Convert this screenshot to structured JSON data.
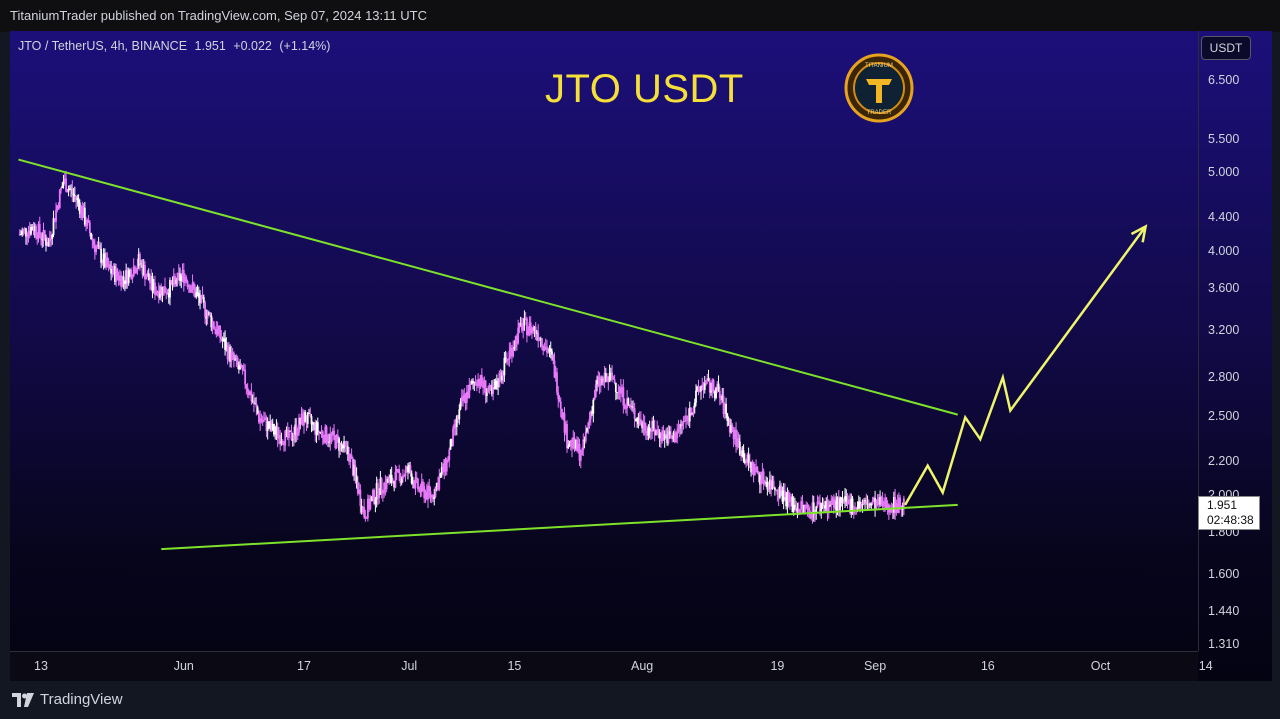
{
  "header": {
    "publisher_line": "TitaniumTrader published on TradingView.com, Sep 07, 2024 13:11 UTC"
  },
  "symbol": {
    "name": "JTO / TetherUS, 4h, BINANCE",
    "last": "1.951",
    "change": "+0.022",
    "change_pct": "(+1.14%)"
  },
  "title_overlay": "JTO USDT",
  "logo": {
    "top_text": "TITANIUM",
    "bottom_text": "TRADER",
    "icon": "titanium-trader-logo"
  },
  "price_axis": {
    "currency": "USDT",
    "current_price": "1.951",
    "countdown": "02:48:38"
  },
  "footer": {
    "brand": "TradingView",
    "icon": "tradingview-logo-icon"
  },
  "colors": {
    "candles": "#e879f9",
    "candles_alt": "#ffffff",
    "trendline": "#7ee22a",
    "projection": "#eef56a",
    "title": "#f5e03a"
  },
  "chart_data": {
    "type": "candlestick",
    "scale": "log",
    "ylim": [
      1.26,
      7.5
    ],
    "y_ticks": [
      "6.500",
      "5.500",
      "5.000",
      "4.400",
      "4.000",
      "3.600",
      "3.200",
      "2.800",
      "2.500",
      "2.200",
      "2.000",
      "1.800",
      "1.600",
      "1.440",
      "1.310"
    ],
    "y_tick_values": [
      6.5,
      5.5,
      5.0,
      4.4,
      4.0,
      3.6,
      3.2,
      2.8,
      2.5,
      2.2,
      2.0,
      1.8,
      1.6,
      1.44,
      1.31
    ],
    "x_ticks": [
      "13",
      "Jun",
      "17",
      "Jul",
      "15",
      "Aug",
      "19",
      "Sep",
      "16",
      "Oct",
      "14"
    ],
    "x_tick_days": [
      -19,
      0,
      16,
      30,
      44,
      61,
      79,
      92,
      107,
      122,
      136
    ],
    "xlim_days": [
      -22,
      136
    ],
    "close_series": {
      "days": [
        -22,
        -20,
        -18,
        -16,
        -14,
        -12,
        -10,
        -8,
        -6,
        -4,
        -2,
        0,
        2,
        4,
        6,
        8,
        10,
        12,
        14,
        16,
        18,
        20,
        22,
        24,
        26,
        28,
        30,
        31,
        33,
        35,
        37,
        39,
        41,
        43,
        45,
        47,
        49,
        51,
        53,
        55,
        57,
        59,
        61,
        63,
        65,
        67,
        69,
        71,
        73,
        75,
        77,
        79,
        81,
        83,
        85,
        87,
        89,
        91,
        93,
        95,
        96
      ],
      "values": [
        4.2,
        4.3,
        4.1,
        4.9,
        4.6,
        4.1,
        3.8,
        3.7,
        3.9,
        3.6,
        3.6,
        3.75,
        3.5,
        3.25,
        3.0,
        2.8,
        2.5,
        2.4,
        2.35,
        2.5,
        2.4,
        2.35,
        2.25,
        1.9,
        2.05,
        2.1,
        2.15,
        2.05,
        2.0,
        2.2,
        2.6,
        2.8,
        2.65,
        2.95,
        3.25,
        3.2,
        2.95,
        2.35,
        2.25,
        2.75,
        2.8,
        2.6,
        2.45,
        2.4,
        2.35,
        2.5,
        2.75,
        2.7,
        2.4,
        2.2,
        2.1,
        2.05,
        1.95,
        1.92,
        1.951,
        1.951,
        1.951,
        1.951,
        1.951,
        1.951,
        1.951
      ]
    },
    "trendlines": [
      {
        "name": "",
        "points": [
          [
            -22,
            5.2
          ],
          [
            103,
            2.52
          ]
        ]
      },
      {
        "name": "",
        "points": [
          [
            -3,
            1.72
          ],
          [
            103,
            1.95
          ]
        ]
      }
    ],
    "projection_path": {
      "points": [
        [
          96,
          1.95
        ],
        [
          99,
          2.18
        ],
        [
          101,
          2.02
        ],
        [
          104,
          2.5
        ],
        [
          106,
          2.35
        ],
        [
          109,
          2.8
        ],
        [
          110,
          2.55
        ],
        [
          128,
          4.3
        ]
      ]
    },
    "last_price": 1.951
  }
}
